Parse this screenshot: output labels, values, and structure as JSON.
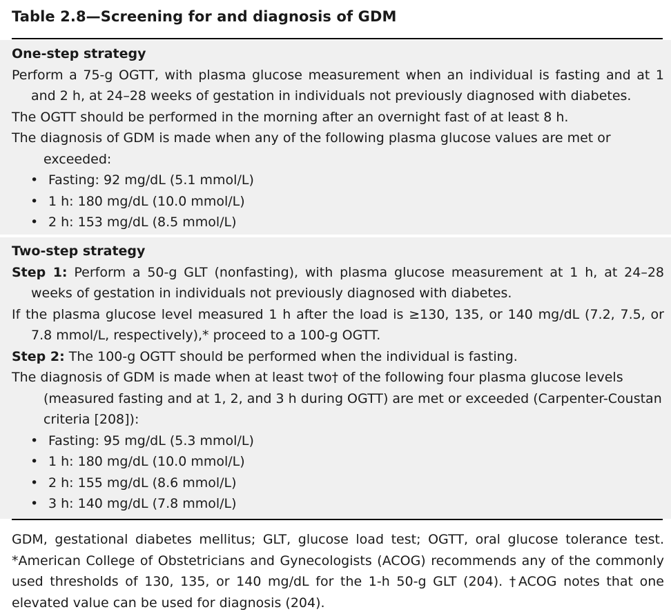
{
  "title": "Table 2.8—Screening for and diagnosis of GDM",
  "one_step": {
    "heading": "One-step strategy",
    "paragraphs": [
      "Perform a 75-g OGTT, with plasma glucose measurement when an individual is fasting and at 1 and 2 h, at 24–28 weeks of gestation in individuals not previously diagnosed with diabetes.",
      "The OGTT should be performed in the morning after an overnight fast of at least 8 h.",
      "The diagnosis of GDM is made when any of the following plasma glucose values are met or exceeded:"
    ],
    "bullets": [
      "Fasting: 92 mg/dL (5.1 mmol/L)",
      "1 h: 180 mg/dL (10.0 mmol/L)",
      "2 h: 153 mg/dL (8.5 mmol/L)"
    ]
  },
  "two_step": {
    "heading": "Two-step strategy",
    "step1_label": "Step 1:",
    "step1_text": " Perform a 50-g GLT (nonfasting), with plasma glucose measurement at 1 h, at 24–28 weeks of gestation in individuals not previously diagnosed with diabetes.",
    "if_text": "If the plasma glucose level measured 1 h after the load is ≥130, 135, or 140 mg/dL (7.2, 7.5, or 7.8 mmol/L, respectively),* proceed to a 100-g OGTT.",
    "step2_label": "Step 2:",
    "step2_text": " The 100-g OGTT should be performed when the individual is fasting.",
    "diagnosis_text": "The diagnosis of GDM is made when at least two† of the following four plasma glucose levels (measured fasting and at 1, 2, and 3 h during OGTT) are met or exceeded (Carpenter-Coustan criteria [208]):",
    "bullets": [
      "Fasting: 95 mg/dL (5.3 mmol/L)",
      "1 h: 180 mg/dL (10.0 mmol/L)",
      "2 h: 155 mg/dL (8.6 mmol/L)",
      "3 h: 140 mg/dL (7.8 mmol/L)"
    ]
  },
  "footnote": "GDM, gestational diabetes mellitus; GLT, glucose load test; OGTT, oral glucose tolerance test. *American College of Obstetricians and Gynecologists (ACOG) recommends any of the commonly used thresholds of 130, 135, or 140 mg/dL for the 1-h 50-g GLT (204). †ACOG notes that one elevated value can be used for diagnosis (204).",
  "bullet_glyph": "•"
}
